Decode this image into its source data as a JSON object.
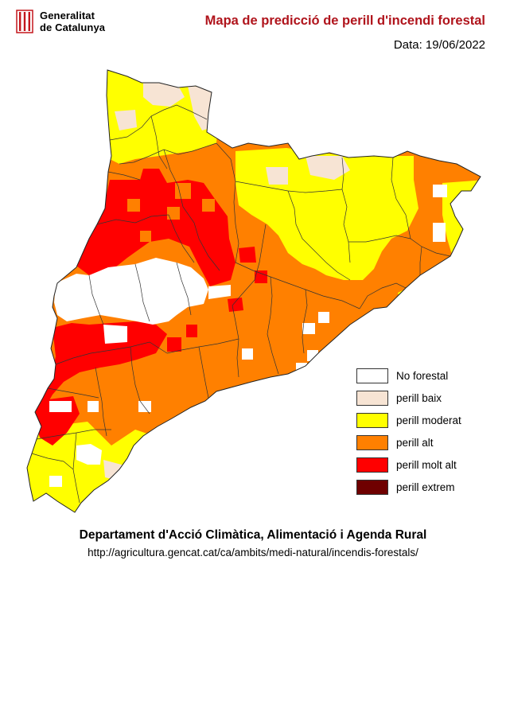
{
  "header": {
    "logo_line1": "Generalitat",
    "logo_line2": "de Catalunya",
    "title": "Mapa de predicció de perill d'incendi forestal",
    "date_text": "Data: 19/06/2022"
  },
  "legend": [
    {
      "label": "No forestal",
      "color": "#ffffff"
    },
    {
      "label": "perill baix",
      "color": "#f7e4d4"
    },
    {
      "label": "perill moderat",
      "color": "#ffff00"
    },
    {
      "label": "perill alt",
      "color": "#ff8000"
    },
    {
      "label": "perill molt alt",
      "color": "#ff0000"
    },
    {
      "label": "perill extrem",
      "color": "#6f0000"
    }
  ],
  "footer": {
    "department": "Departament d'Acció Climàtica, Alimentació i Agenda Rural",
    "url": "http://agricultura.gencat.cat/ca/ambits/medi-natural/incendis-forestals/"
  }
}
